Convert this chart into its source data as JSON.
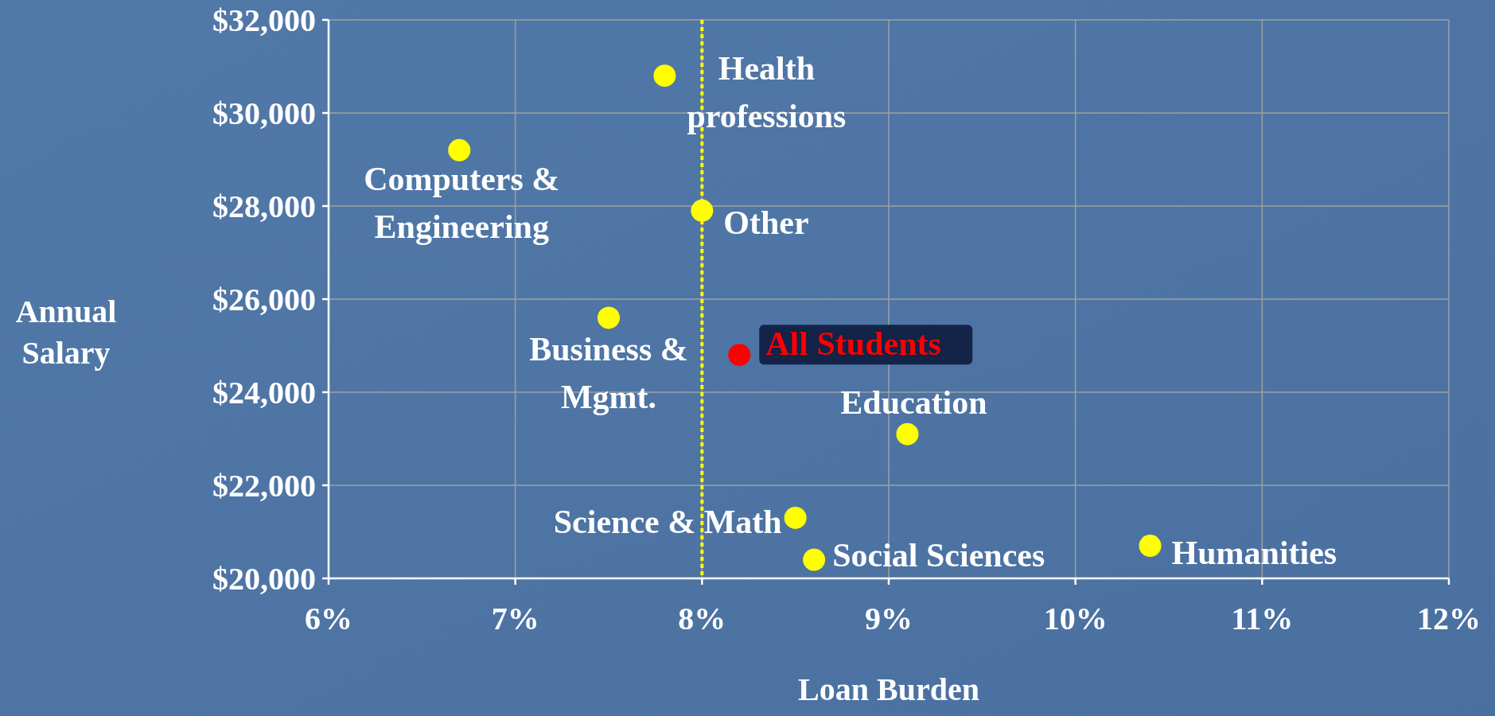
{
  "chart_data": {
    "type": "scatter",
    "xlabel": "Loan Burden",
    "ylabel": "Annual Salary",
    "xlim": [
      6,
      12
    ],
    "ylim": [
      20000,
      32000
    ],
    "xticks": [
      {
        "value": 6,
        "label": "6%"
      },
      {
        "value": 7,
        "label": "7%"
      },
      {
        "value": 8,
        "label": "8%"
      },
      {
        "value": 9,
        "label": "9%"
      },
      {
        "value": 10,
        "label": "10%"
      },
      {
        "value": 11,
        "label": "11%"
      },
      {
        "value": 12,
        "label": "12%"
      }
    ],
    "yticks": [
      {
        "value": 20000,
        "label": "$20,000"
      },
      {
        "value": 22000,
        "label": "$22,000"
      },
      {
        "value": 24000,
        "label": "$24,000"
      },
      {
        "value": 26000,
        "label": "$26,000"
      },
      {
        "value": 28000,
        "label": "$28,000"
      },
      {
        "value": 30000,
        "label": "$30,000"
      },
      {
        "value": 32000,
        "label": "$32,000"
      }
    ],
    "grid": true,
    "marker": "circle",
    "ref_lines": [
      {
        "axis": "x",
        "value": 8,
        "color": "#ffff00",
        "line_style": "dotted"
      }
    ],
    "series": [
      {
        "name": "Health professions",
        "color": "#ffff00",
        "x": [
          7.8
        ],
        "values": [
          30800
        ]
      },
      {
        "name": "Computers & Engineering",
        "color": "#ffff00",
        "x": [
          6.7
        ],
        "values": [
          29200
        ]
      },
      {
        "name": "Other",
        "color": "#ffff00",
        "x": [
          8.0
        ],
        "values": [
          27900
        ]
      },
      {
        "name": "Business & Mgmt.",
        "color": "#ffff00",
        "x": [
          7.5
        ],
        "values": [
          25600
        ]
      },
      {
        "name": "All Students",
        "color": "#ff0000",
        "x": [
          8.2
        ],
        "values": [
          24800
        ]
      },
      {
        "name": "Education",
        "color": "#ffff00",
        "x": [
          9.1
        ],
        "values": [
          23100
        ]
      },
      {
        "name": "Science & Math",
        "color": "#ffff00",
        "x": [
          8.5
        ],
        "values": [
          21300
        ]
      },
      {
        "name": "Social Sciences",
        "color": "#ffff00",
        "x": [
          8.6
        ],
        "values": [
          20400
        ]
      },
      {
        "name": "Humanities",
        "color": "#ffff00",
        "x": [
          10.4
        ],
        "values": [
          20700
        ]
      }
    ]
  }
}
